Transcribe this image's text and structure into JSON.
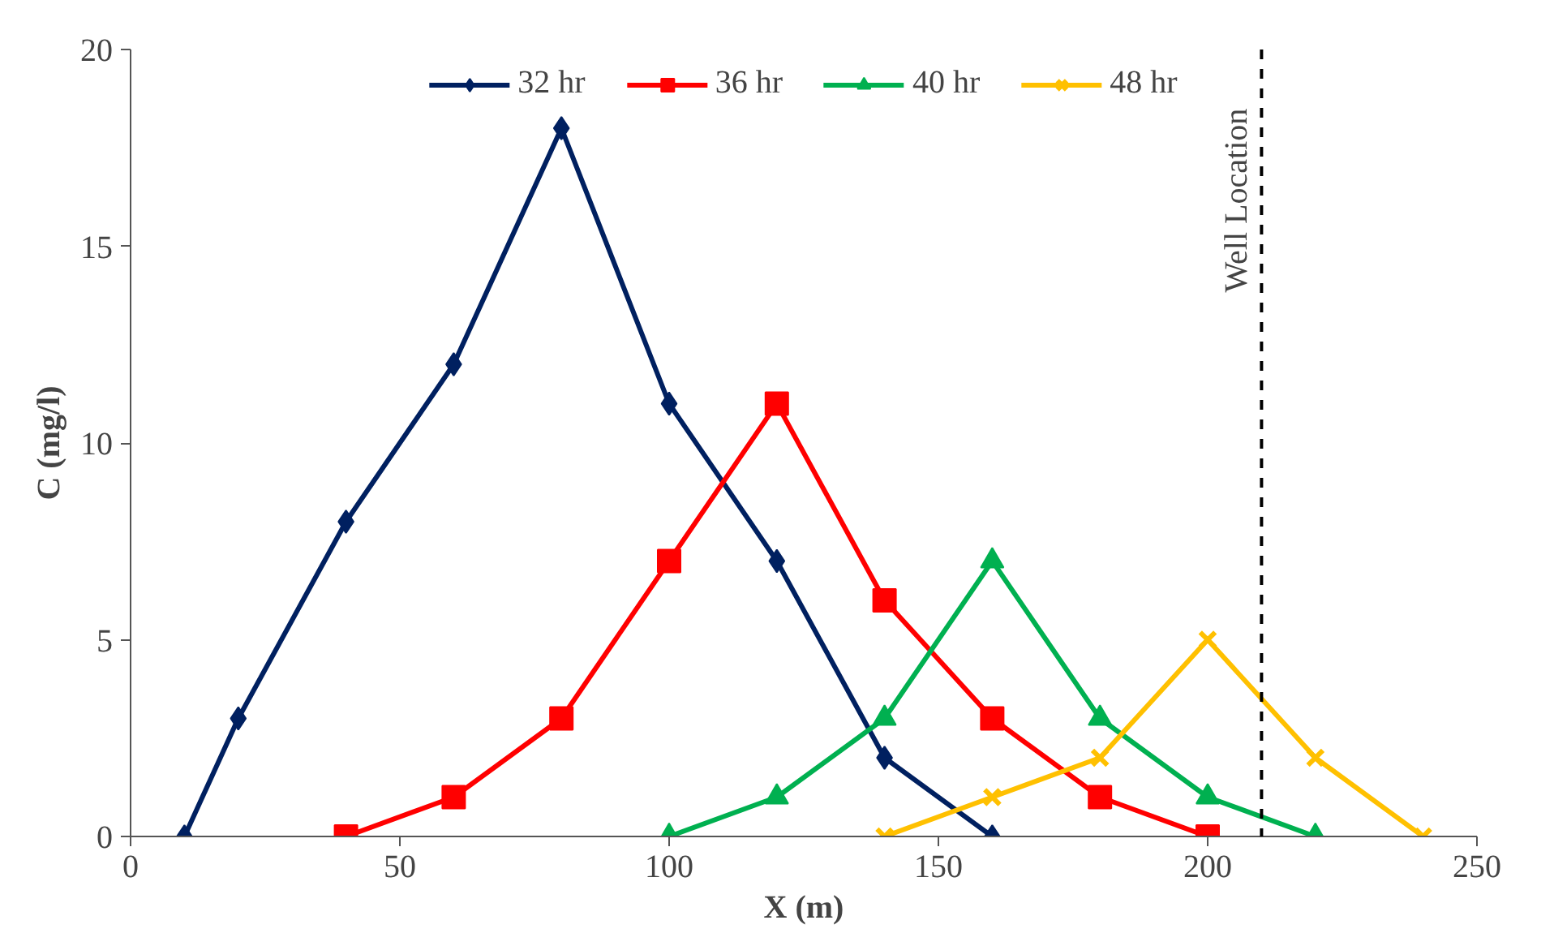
{
  "chart_data": {
    "type": "line",
    "xlabel": "X (m)",
    "ylabel": "C (mg/l)",
    "xlim": [
      0,
      250
    ],
    "xticks": [
      0,
      50,
      100,
      150,
      200,
      250
    ],
    "ylim": [
      0,
      20
    ],
    "yticks": [
      0,
      5,
      10,
      15,
      20
    ],
    "grid": false,
    "legend": "top",
    "line_style": "solid",
    "series": [
      {
        "name": "32 hr",
        "color": "#002060",
        "marker": "diamond",
        "x": [
          10,
          20,
          40,
          60,
          80,
          100,
          120,
          140,
          160
        ],
        "values": [
          0,
          3,
          8,
          12,
          18,
          11,
          7,
          2,
          0
        ]
      },
      {
        "name": "36 hr",
        "color": "#ff0000",
        "marker": "square",
        "x": [
          40,
          60,
          80,
          100,
          120,
          140,
          160,
          180,
          200
        ],
        "values": [
          0,
          1,
          3,
          7,
          11,
          6,
          3,
          1,
          0
        ]
      },
      {
        "name": "40 hr",
        "color": "#00b050",
        "marker": "triangle",
        "x": [
          100,
          120,
          140,
          160,
          180,
          200,
          220
        ],
        "values": [
          0,
          1,
          3,
          7,
          3,
          1,
          0
        ]
      },
      {
        "name": "48 hr",
        "color": "#ffc000",
        "marker": "cross",
        "x": [
          140,
          160,
          180,
          200,
          220,
          240
        ],
        "values": [
          0,
          1,
          2,
          5,
          2,
          0
        ]
      }
    ],
    "ref_lines": [
      {
        "axis": "x",
        "value": 210,
        "label": "Well Location",
        "color": "#000000",
        "line_style": "dashed"
      }
    ]
  }
}
